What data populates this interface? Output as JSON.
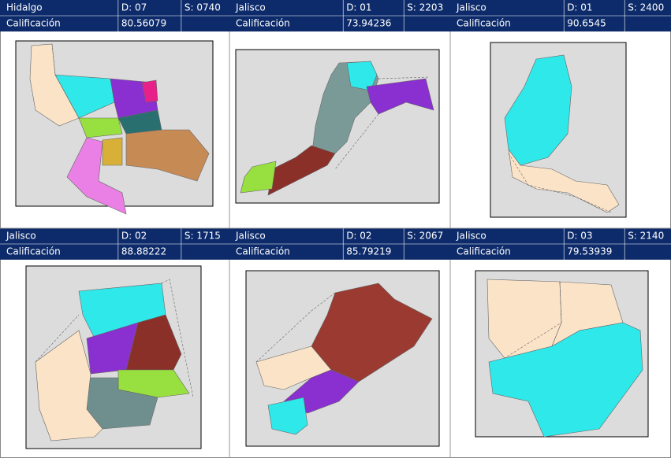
{
  "panels": [
    {
      "state": "Hidalgo",
      "district": "D: 07",
      "section": "S: 0740",
      "label": "Calificación",
      "score": "80.56079"
    },
    {
      "state": "Jalisco",
      "district": "D: 01",
      "section": "S: 2203",
      "label": "Calificación",
      "score": "73.94236"
    },
    {
      "state": "Jalisco",
      "district": "D: 01",
      "section": "S: 2400",
      "label": "Calificación",
      "score": "90.6545"
    },
    {
      "state": "Jalisco",
      "district": "D: 02",
      "section": "S: 1715",
      "label": "Calificación",
      "score": "88.88222"
    },
    {
      "state": "Jalisco",
      "district": "D: 02",
      "section": "S: 2067",
      "label": "Calificación",
      "score": "85.79219"
    },
    {
      "state": "Jalisco",
      "district": "D: 03",
      "section": "S: 2140",
      "label": "Calificación",
      "score": "79.53939"
    }
  ]
}
